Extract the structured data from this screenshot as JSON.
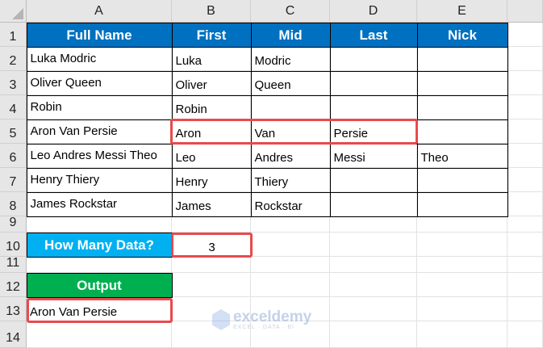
{
  "columns": [
    "A",
    "B",
    "C",
    "D",
    "E"
  ],
  "rows": [
    "1",
    "2",
    "3",
    "4",
    "5",
    "6",
    "7",
    "8",
    "9",
    "10",
    "11",
    "12",
    "13",
    "14"
  ],
  "table": {
    "headers": [
      "Full Name",
      "First",
      "Mid",
      "Last",
      "Nick"
    ],
    "data": [
      [
        "Luka Modric",
        "Luka",
        "Modric",
        "",
        ""
      ],
      [
        "Oliver Queen",
        "Oliver",
        "Queen",
        "",
        ""
      ],
      [
        "Robin",
        "Robin",
        "",
        "",
        ""
      ],
      [
        "Aron Van Persie",
        "Aron",
        "Van",
        "Persie",
        ""
      ],
      [
        "Leo Andres Messi Theo",
        "Leo",
        "Andres",
        "Messi",
        "Theo"
      ],
      [
        "Henry Thiery",
        "Henry",
        "Thiery",
        "",
        ""
      ],
      [
        "James Rockstar",
        "James",
        "Rockstar",
        "",
        ""
      ]
    ]
  },
  "input": {
    "label": "How Many Data?",
    "value": "3"
  },
  "output": {
    "label": "Output",
    "value": "Aron Van Persie"
  },
  "watermark": {
    "name": "exceldemy",
    "tagline": "EXCEL · DATA · BI"
  },
  "colors": {
    "header_blue": "#0070c0",
    "input_label": "#00b0f0",
    "output_label": "#00b050",
    "highlight": "#e84a4f"
  }
}
